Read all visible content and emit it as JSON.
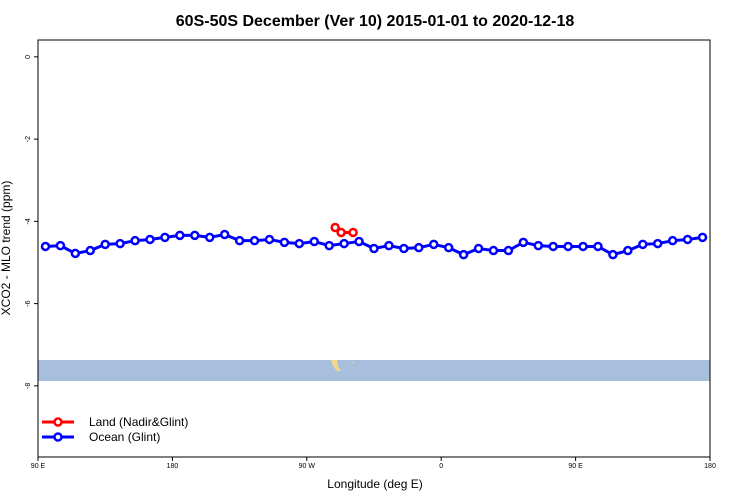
{
  "chart_data": {
    "type": "line",
    "title": "60S-50S December (Ver 10)   2015-01-01 to 2020-12-18",
    "x_label": "Longitude (deg E)",
    "y_label": "XCO2 - MLO trend (ppm)",
    "xlim": [
      90,
      540
    ],
    "xticks": [
      {
        "value": 90,
        "label": "90 E"
      },
      {
        "value": 180,
        "label": "180"
      },
      {
        "value": 270,
        "label": "90 W"
      },
      {
        "value": 360,
        "label": "0"
      },
      {
        "value": 450,
        "label": "90 E"
      },
      {
        "value": 540,
        "label": "180"
      }
    ],
    "ylim": [
      -9.73,
      0.41
    ],
    "yticks": [
      0,
      -2,
      -4,
      -6,
      -8
    ],
    "legend_position": "bottom-left",
    "series": [
      {
        "name": "Land (Nadir&Glint)",
        "color": "#ff0000",
        "x": [
          289,
          293,
          301
        ],
        "values": [
          -4.15,
          -4.27,
          -4.27
        ]
      },
      {
        "name": "Ocean (Glint)",
        "color": "#0000ff",
        "x": [
          95,
          105,
          115,
          125,
          135,
          145,
          155,
          165,
          175,
          185,
          195,
          205,
          215,
          225,
          235,
          245,
          255,
          265,
          275,
          285,
          295,
          305,
          315,
          325,
          335,
          345,
          355,
          365,
          375,
          385,
          395,
          405,
          415,
          425,
          435,
          445,
          455,
          465,
          475,
          485,
          495,
          505,
          515,
          525,
          535
        ],
        "values": [
          -4.61,
          -4.59,
          -4.78,
          -4.71,
          -4.56,
          -4.54,
          -4.47,
          -4.44,
          -4.39,
          -4.34,
          -4.34,
          -4.39,
          -4.32,
          -4.47,
          -4.47,
          -4.44,
          -4.51,
          -4.54,
          -4.49,
          -4.59,
          -4.54,
          -4.49,
          -4.66,
          -4.59,
          -4.66,
          -4.64,
          -4.56,
          -4.64,
          -4.81,
          -4.66,
          -4.71,
          -4.71,
          -4.51,
          -4.59,
          -4.61,
          -4.61,
          -4.61,
          -4.61,
          -4.81,
          -4.71,
          -4.56,
          -4.54,
          -4.47,
          -4.44,
          -4.39
        ]
      }
    ]
  }
}
